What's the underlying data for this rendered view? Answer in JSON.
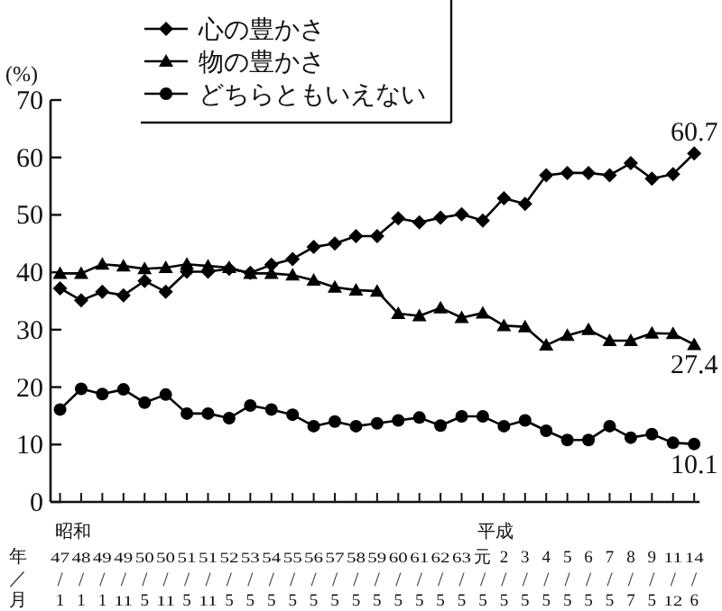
{
  "chart_data": {
    "type": "line",
    "ylabel": "(%)",
    "categories": [
      "47/1",
      "48/1",
      "49/1",
      "49/11",
      "50/5",
      "50/11",
      "51/5",
      "51/11",
      "52/5",
      "53/5",
      "54/5",
      "55/5",
      "56/5",
      "57/5",
      "58/5",
      "59/5",
      "60/5",
      "61/5",
      "62/5",
      "63/5",
      "元/5",
      "2/5",
      "3/5",
      "4/5",
      "5/5",
      "6/5",
      "7/5",
      "8/7",
      "9/5",
      "11/12",
      "14/6"
    ],
    "series": [
      {
        "name": "心の豊かさ",
        "color": "#000000",
        "marker": "diamond",
        "values": [
          37.2,
          35.1,
          36.6,
          36.0,
          38.5,
          36.6,
          40.1,
          40.1,
          40.6,
          39.9,
          41.3,
          42.3,
          44.4,
          45.0,
          46.3,
          46.3,
          49.4,
          48.7,
          49.5,
          50.1,
          49.0,
          52.9,
          51.9,
          56.9,
          57.3,
          57.3,
          56.9,
          59.0,
          56.3,
          57.1,
          60.7
        ],
        "value_labels": [
          null,
          null,
          null,
          null,
          null,
          null,
          null,
          null,
          null,
          null,
          null,
          null,
          null,
          null,
          null,
          null,
          null,
          null,
          null,
          null,
          null,
          null,
          null,
          null,
          null,
          null,
          null,
          null,
          null,
          null,
          "60.7"
        ]
      },
      {
        "name": "物の豊かさ",
        "color": "#000000",
        "marker": "triangle",
        "values": [
          39.8,
          39.8,
          41.4,
          41.1,
          40.6,
          40.8,
          41.4,
          41.1,
          40.8,
          39.8,
          39.8,
          39.5,
          38.6,
          37.4,
          36.9,
          36.7,
          32.8,
          32.4,
          33.8,
          32.1,
          32.9,
          30.7,
          30.5,
          27.3,
          29.0,
          30.0,
          28.1,
          28.1,
          29.4,
          29.3,
          27.4
        ],
        "value_labels": [
          null,
          null,
          null,
          null,
          null,
          null,
          null,
          null,
          null,
          null,
          null,
          null,
          null,
          null,
          null,
          null,
          null,
          null,
          null,
          null,
          null,
          null,
          null,
          null,
          null,
          null,
          null,
          null,
          null,
          null,
          "27.4"
        ]
      },
      {
        "name": "どちらともいえない",
        "color": "#000000",
        "marker": "circle",
        "values": [
          16.1,
          19.7,
          18.8,
          19.6,
          17.3,
          18.7,
          15.4,
          15.4,
          14.6,
          16.8,
          16.1,
          15.2,
          13.2,
          14.0,
          13.2,
          13.7,
          14.2,
          14.7,
          13.3,
          14.9,
          14.9,
          13.2,
          14.2,
          12.4,
          10.8,
          10.8,
          13.2,
          11.2,
          11.8,
          10.3,
          10.1
        ],
        "value_labels": [
          null,
          null,
          null,
          null,
          null,
          null,
          null,
          null,
          null,
          null,
          null,
          null,
          null,
          null,
          null,
          null,
          null,
          null,
          null,
          null,
          null,
          null,
          null,
          null,
          null,
          null,
          null,
          null,
          null,
          null,
          "10.1"
        ]
      }
    ],
    "ylim": [
      0,
      70
    ],
    "yticks": [
      0,
      10,
      20,
      30,
      40,
      50,
      60,
      70
    ],
    "legend": "top left",
    "grid": false,
    "annotations": [
      "昭和",
      "平成",
      "年",
      "／",
      "月"
    ]
  }
}
